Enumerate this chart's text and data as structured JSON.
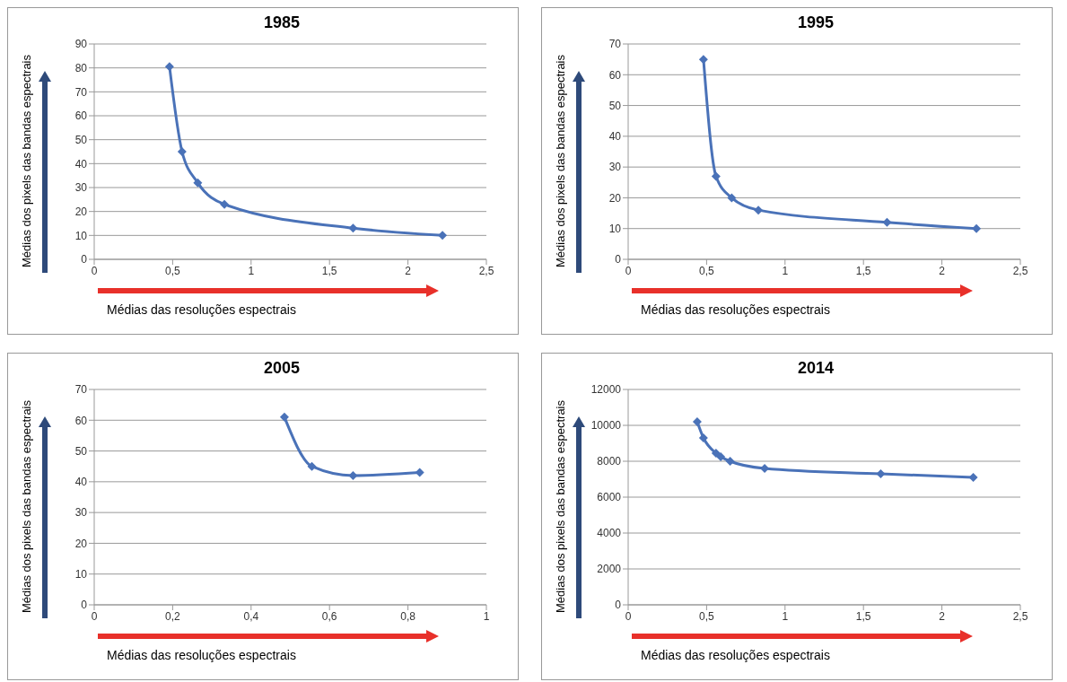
{
  "chart_data": [
    {
      "type": "line",
      "title": "1985",
      "xlabel": "Médias  das resoluções espectrais",
      "ylabel": "Médias  dos pixels  das bandas espectrais",
      "color": "#4a72b8",
      "marker": "diamond",
      "grid": "y",
      "x": [
        0.48,
        0.56,
        0.66,
        0.83,
        1.65,
        2.22
      ],
      "values": [
        80.5,
        45,
        32,
        23,
        13,
        10
      ],
      "xlim": [
        0,
        2.5
      ],
      "xticks": [
        0,
        {
          "value": 0.5,
          "label": "0,5"
        },
        1,
        {
          "value": 1.5,
          "label": "1,5"
        },
        2,
        {
          "value": 2.5,
          "label": "2,5"
        }
      ],
      "ylim": [
        0,
        90
      ],
      "yticks": [
        0,
        10,
        20,
        30,
        40,
        50,
        60,
        70,
        80,
        90
      ]
    },
    {
      "type": "line",
      "title": "1995",
      "xlabel": "Médias  das resoluções espectrais",
      "ylabel": "Médias  dos pixels  das bandas espectrais",
      "color": "#4a72b8",
      "marker": "diamond",
      "grid": "y",
      "x": [
        0.48,
        0.56,
        0.66,
        0.83,
        1.65,
        2.22
      ],
      "values": [
        65,
        27,
        20,
        16,
        12,
        10
      ],
      "xlim": [
        0,
        2.5
      ],
      "xticks": [
        0,
        {
          "value": 0.5,
          "label": "0,5"
        },
        1,
        {
          "value": 1.5,
          "label": "1,5"
        },
        2,
        {
          "value": 2.5,
          "label": "2,5"
        }
      ],
      "ylim": [
        0,
        70
      ],
      "yticks": [
        0,
        10,
        20,
        30,
        40,
        50,
        60,
        70
      ]
    },
    {
      "type": "line",
      "title": "2005",
      "xlabel": "Médias das resoluções espectrais",
      "ylabel": "Médias  dos pixels  das bandas espectrais",
      "color": "#4a72b8",
      "marker": "diamond",
      "grid": "y",
      "x": [
        0.485,
        0.555,
        0.66,
        0.83
      ],
      "values": [
        61,
        45,
        42,
        43
      ],
      "xlim": [
        0,
        1
      ],
      "xticks": [
        0,
        {
          "value": 0.2,
          "label": "0,2"
        },
        {
          "value": 0.4,
          "label": "0,4"
        },
        {
          "value": 0.6,
          "label": "0,6"
        },
        {
          "value": 0.8,
          "label": "0,8"
        },
        1
      ],
      "ylim": [
        0,
        70
      ],
      "yticks": [
        0,
        10,
        20,
        30,
        40,
        50,
        60,
        70
      ]
    },
    {
      "type": "line",
      "title": "2014",
      "xlabel": "Médias  das resoluções espectrais",
      "ylabel": "Médias dos pixels  das bandas espectrais",
      "color": "#4a72b8",
      "marker": "diamond",
      "grid": "y",
      "x": [
        0.44,
        0.48,
        0.56,
        0.59,
        0.65,
        0.87,
        1.61,
        2.2
      ],
      "values": [
        10200,
        9300,
        8450,
        8250,
        8000,
        7600,
        7300,
        7100
      ],
      "xlim": [
        0,
        2.5
      ],
      "xticks": [
        0,
        {
          "value": 0.5,
          "label": "0,5"
        },
        1,
        {
          "value": 1.5,
          "label": "1,5"
        },
        2,
        {
          "value": 2.5,
          "label": "2,5"
        }
      ],
      "ylim": [
        0,
        12000
      ],
      "yticks": [
        0,
        2000,
        4000,
        6000,
        8000,
        10000,
        12000
      ]
    }
  ]
}
